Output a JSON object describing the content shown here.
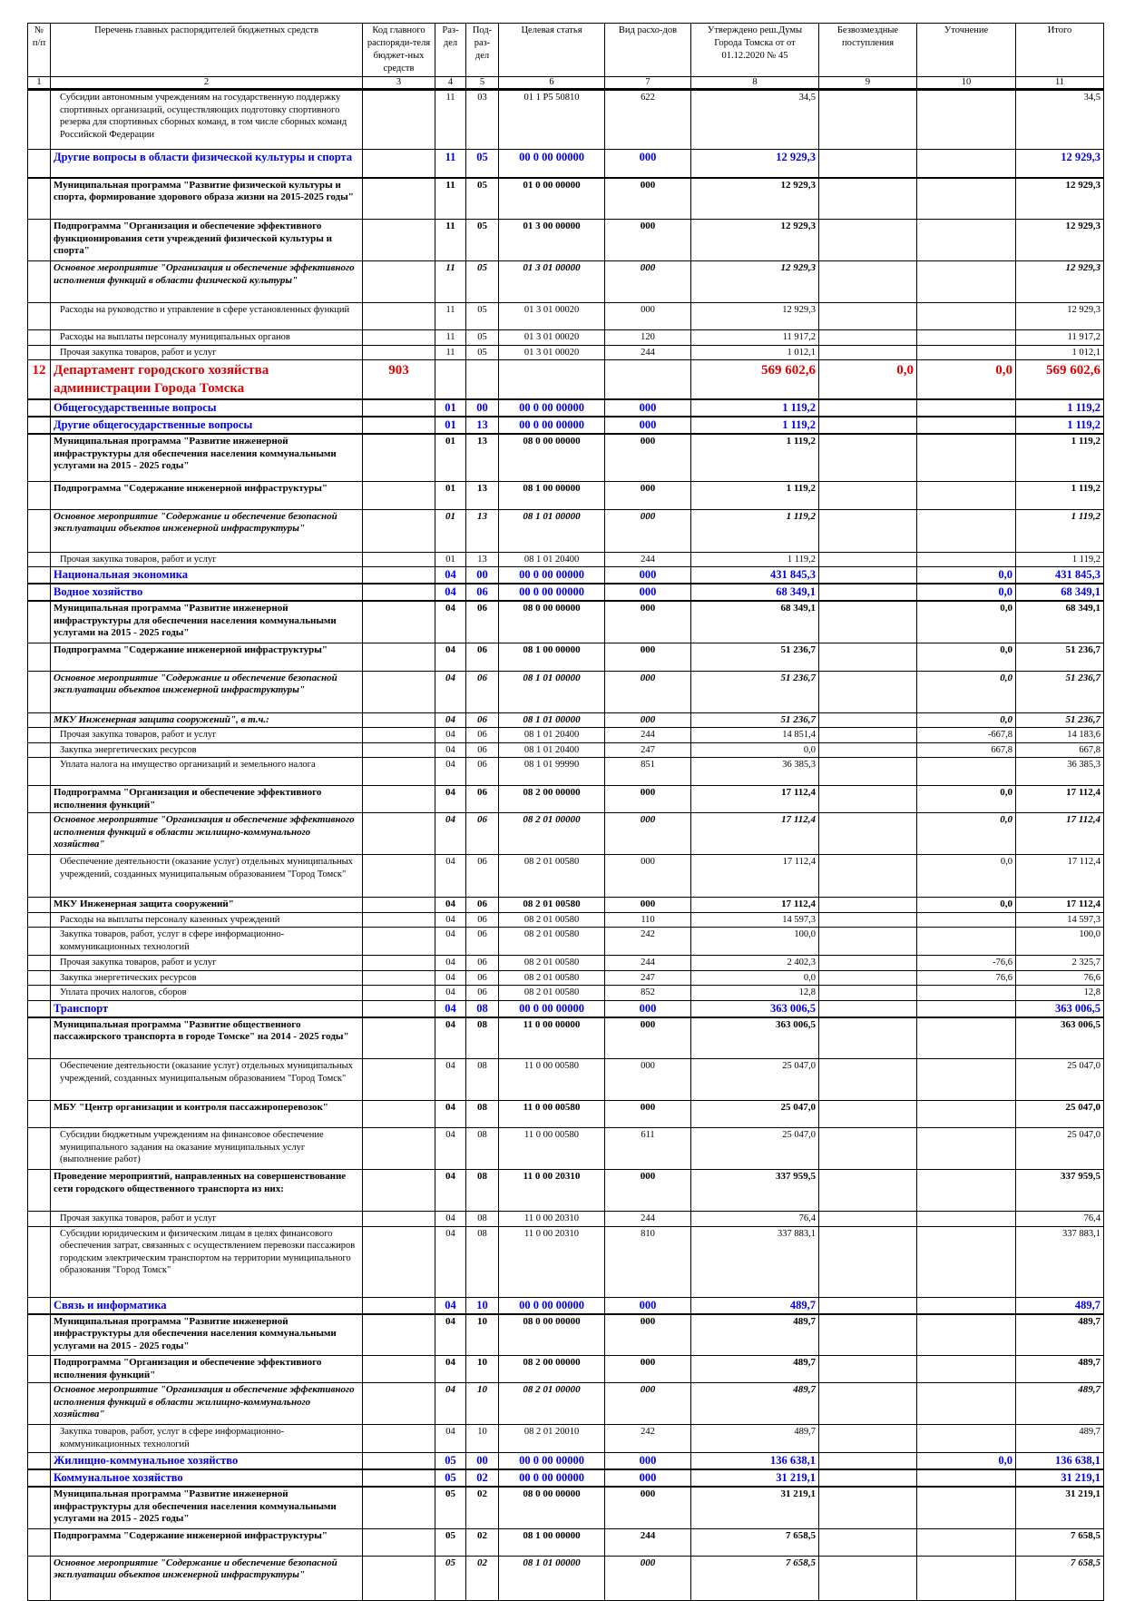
{
  "table": {
    "headers": [
      "№ п/п",
      "Перечень главных распорядителей бюджетных средств",
      "Код главного распоряди-теля бюджет-ных средств",
      "Раз-дел",
      "Под-раз-дел",
      "Целевая статья",
      "Вид расхо-дов",
      "Утверждено реш.Думы Города Томска от от 01.12.2020 № 45",
      "Безвозмездные поступления",
      "Уточнение",
      "Итого"
    ],
    "column_numbers": [
      "1",
      "2",
      "3",
      "4",
      "5",
      "6",
      "7",
      "8",
      "9",
      "10",
      "11"
    ],
    "rows": [
      {
        "style": "plain",
        "cells": [
          "",
          "Субсидии автономным учреждениям на  государственную поддержку спортивных организаций, осуществляющих подготовку спортивного резерва для спортивных сборных команд, в том числе сборных команд Российской Федерации",
          "",
          "11",
          "03",
          "01 1 P5 50810",
          "622",
          "34,5",
          "",
          "",
          "34,5"
        ]
      },
      {
        "style": "blue",
        "cells": [
          "",
          "Другие вопросы в области физической культуры и спорта",
          "",
          "11",
          "05",
          "00 0 00 00000",
          "000",
          "12 929,3",
          "",
          "",
          "12 929,3"
        ]
      },
      {
        "style": "bold",
        "cells": [
          "",
          "Муниципальная программа \"Развитие физической культуры и спорта, формирование здорового образа жизни на 2015-2025 годы\"",
          "",
          "11",
          "05",
          "01 0 00 00000",
          "000",
          "12 929,3",
          "",
          "",
          "12 929,3"
        ]
      },
      {
        "style": "bold",
        "cells": [
          "",
          "Подпрограмма \"Организация и обеспечение эффективного функционирования сети учреждений физической культуры и спорта\"",
          "",
          "11",
          "05",
          "01 3 00 00000",
          "000",
          "12 929,3",
          "",
          "",
          "12 929,3"
        ]
      },
      {
        "style": "bolditalic",
        "cells": [
          "",
          "Основное мероприятие \"Организация и обеспечение эффективного исполнения функций в области физической культуры\"",
          "",
          "11",
          "05",
          "01 3 01 00000",
          "000",
          "12 929,3",
          "",
          "",
          "12 929,3"
        ]
      },
      {
        "style": "plain",
        "cells": [
          "",
          "Расходы на руководство и управление в сфере установленных функций",
          "",
          "11",
          "05",
          "01 3 01 00020",
          "000",
          "12 929,3",
          "",
          "",
          "12 929,3"
        ]
      },
      {
        "style": "plain",
        "cells": [
          "",
          "Расходы на выплаты персоналу муниципальных органов",
          "",
          "11",
          "05",
          "01 3 01 00020",
          "120",
          "11 917,2",
          "",
          "",
          "11 917,2"
        ]
      },
      {
        "style": "plain",
        "cells": [
          "",
          "Прочая закупка товаров, работ и услуг",
          "",
          "11",
          "05",
          "01 3 01 00020",
          "244",
          "1 012,1",
          "",
          "",
          "1 012,1"
        ]
      },
      {
        "style": "red",
        "cells": [
          "12",
          "Департамент городского хозяйства администрации Города Томска",
          "903",
          "",
          "",
          "",
          "",
          "569 602,6",
          "0,0",
          "0,0",
          "569 602,6"
        ]
      },
      {
        "style": "blue",
        "cells": [
          "",
          "Общегосударственные вопросы",
          "",
          "01",
          "00",
          "00 0 00 00000",
          "000",
          "1 119,2",
          "",
          "",
          "1 119,2"
        ]
      },
      {
        "style": "blue",
        "cells": [
          "",
          "Другие общегосударственные вопросы",
          "",
          "01",
          "13",
          "00 0 00 00000",
          "000",
          "1 119,2",
          "",
          "",
          "1 119,2"
        ]
      },
      {
        "style": "bold",
        "cells": [
          "",
          "Муниципальная программа \"Развитие инженерной инфраструктуры для обеспечения населения коммунальными услугами на 2015 - 2025 годы\"",
          "",
          "01",
          "13",
          "08 0 00 00000",
          "000",
          "1 119,2",
          "",
          "",
          "1 119,2"
        ]
      },
      {
        "style": "bold",
        "cells": [
          "",
          "Подпрограмма \"Содержание инженерной инфраструктуры\"",
          "",
          "01",
          "13",
          "08 1 00 00000",
          "000",
          "1 119,2",
          "",
          "",
          "1 119,2"
        ]
      },
      {
        "style": "bolditalic",
        "cells": [
          "",
          "Основное мероприятие \"Содержание и обеспечение безопасной эксплуатации объектов инженерной инфраструктуры\"",
          "",
          "01",
          "13",
          "08 1 01 00000",
          "000",
          "1 119,2",
          "",
          "",
          "1 119,2"
        ]
      },
      {
        "style": "plain",
        "cells": [
          "",
          "Прочая закупка товаров, работ и услуг",
          "",
          "01",
          "13",
          "08 1 01 20400",
          "244",
          "1 119,2",
          "",
          "",
          "1 119,2"
        ]
      },
      {
        "style": "blue",
        "cells": [
          "",
          "Национальная экономика",
          "",
          "04",
          "00",
          "00 0 00 00000",
          "000",
          "431 845,3",
          "",
          "0,0",
          "431 845,3"
        ]
      },
      {
        "style": "blue",
        "cells": [
          "",
          "Водное хозяйство",
          "",
          "04",
          "06",
          "00 0 00 00000",
          "000",
          "68 349,1",
          "",
          "0,0",
          "68 349,1"
        ]
      },
      {
        "style": "bold",
        "cells": [
          "",
          "Муниципальная программа \"Развитие инженерной инфраструктуры для обеспечения населения коммунальными услугами на 2015 - 2025 годы\"",
          "",
          "04",
          "06",
          "08 0 00 00000",
          "000",
          "68 349,1",
          "",
          "0,0",
          "68 349,1"
        ]
      },
      {
        "style": "bold",
        "cells": [
          "",
          "Подпрограмма \"Содержание инженерной инфраструктуры\"",
          "",
          "04",
          "06",
          "08 1 00 00000",
          "000",
          "51 236,7",
          "",
          "0,0",
          "51 236,7"
        ]
      },
      {
        "style": "bolditalic",
        "cells": [
          "",
          "Основное мероприятие \"Содержание и обеспечение безопасной эксплуатации объектов инженерной инфраструктуры\"",
          "",
          "04",
          "06",
          "08 1 01 00000",
          "000",
          "51 236,7",
          "",
          "0,0",
          "51 236,7"
        ]
      },
      {
        "style": "bolditalic",
        "cells": [
          "",
          "МКУ Инженерная защита сооружений\", в т.ч.:",
          "",
          "04",
          "06",
          "08 1 01 00000",
          "000",
          "51 236,7",
          "",
          "0,0",
          "51 236,7"
        ]
      },
      {
        "style": "plain",
        "cells": [
          "",
          "Прочая закупка товаров, работ и услуг",
          "",
          "04",
          "06",
          "08 1 01 20400",
          "244",
          "14 851,4",
          "",
          "-667,8",
          "14 183,6"
        ]
      },
      {
        "style": "plain",
        "cells": [
          "",
          "Закупка энергетических ресурсов",
          "",
          "04",
          "06",
          "08 1 01 20400",
          "247",
          "0,0",
          "",
          "667,8",
          "667,8"
        ]
      },
      {
        "style": "plain",
        "cells": [
          "",
          "Уплата налога на имущество организаций и земельного налога",
          "",
          "04",
          "06",
          "08 1 01 99990",
          "851",
          "36 385,3",
          "",
          "",
          "36 385,3"
        ]
      },
      {
        "style": "bold",
        "cells": [
          "",
          "Подпрограмма \"Организация и обеспечение эффективного исполнения функций\"",
          "",
          "04",
          "06",
          "08 2 00 00000",
          "000",
          "17 112,4",
          "",
          "0,0",
          "17 112,4"
        ]
      },
      {
        "style": "bolditalic",
        "cells": [
          "",
          "Основное мероприятие \"Организация и обеспечение эффективного исполнения функций в области жилищно-коммунального хозяйства\"",
          "",
          "04",
          "06",
          "08 2 01 00000",
          "000",
          "17 112,4",
          "",
          "0,0",
          "17 112,4"
        ]
      },
      {
        "style": "plain",
        "cells": [
          "",
          "Обеспечение деятельности (оказание услуг) отдельных муниципальных учреждений, созданных муниципальным образованием \"Город Томск\"",
          "",
          "04",
          "06",
          "08 2 01 00580",
          "000",
          "17 112,4",
          "",
          "0,0",
          "17 112,4"
        ]
      },
      {
        "style": "bold",
        "cells": [
          "",
          "МКУ Инженерная защита сооружений\"",
          "",
          "04",
          "06",
          "08 2 01 00580",
          "000",
          "17 112,4",
          "",
          "0,0",
          "17 112,4"
        ]
      },
      {
        "style": "plain",
        "cells": [
          "",
          "Расходы на выплаты персоналу казенных учреждений",
          "",
          "04",
          "06",
          "08 2 01 00580",
          "110",
          "14 597,3",
          "",
          "",
          "14 597,3"
        ]
      },
      {
        "style": "plain",
        "cells": [
          "",
          "Закупка товаров, работ, услуг в сфере информационно-коммуникационных технологий",
          "",
          "04",
          "06",
          "08 2 01 00580",
          "242",
          "100,0",
          "",
          "",
          "100,0"
        ]
      },
      {
        "style": "plain",
        "cells": [
          "",
          "Прочая закупка товаров, работ и услуг",
          "",
          "04",
          "06",
          "08 2 01 00580",
          "244",
          "2 402,3",
          "",
          "-76,6",
          "2 325,7"
        ]
      },
      {
        "style": "plain",
        "cells": [
          "",
          "Закупка энергетических ресурсов",
          "",
          "04",
          "06",
          "08 2 01 00580",
          "247",
          "0,0",
          "",
          "76,6",
          "76,6"
        ]
      },
      {
        "style": "plain",
        "cells": [
          "",
          "Уплата прочих налогов, сборов",
          "",
          "04",
          "06",
          "08 2 01 00580",
          "852",
          "12,8",
          "",
          "",
          "12,8"
        ]
      },
      {
        "style": "blue",
        "cells": [
          "",
          "Транспорт",
          "",
          "04",
          "08",
          "00 0 00 00000",
          "000",
          "363 006,5",
          "",
          "",
          "363 006,5"
        ]
      },
      {
        "style": "bold",
        "cells": [
          "",
          "Муниципальная программа \"Развитие общественного пассажирского транспорта в городе Томске\" на 2014 - 2025 годы\"",
          "",
          "04",
          "08",
          "11 0 00 00000",
          "000",
          "363 006,5",
          "",
          "",
          "363 006,5"
        ]
      },
      {
        "style": "plain",
        "cells": [
          "",
          "Обеспечение деятельности (оказание услуг) отдельных муниципальных учреждений, созданных муниципальным образованием \"Город Томск\"",
          "",
          "04",
          "08",
          "11 0 00 00580",
          "000",
          "25 047,0",
          "",
          "",
          "25 047,0"
        ]
      },
      {
        "style": "bold",
        "cells": [
          "",
          "МБУ \"Центр организации и контроля пассажироперевозок\"",
          "",
          "04",
          "08",
          "11 0 00 00580",
          "000",
          "25 047,0",
          "",
          "",
          "25 047,0"
        ]
      },
      {
        "style": "plain",
        "cells": [
          "",
          "Субсидии бюджетным учреждениям на финансовое обеспечение муниципального задания на оказание муниципальных услуг (выполнение работ)",
          "",
          "04",
          "08",
          "11 0 00 00580",
          "611",
          "25 047,0",
          "",
          "",
          "25 047,0"
        ]
      },
      {
        "style": "bold",
        "cells": [
          "",
          "Проведение мероприятий, направленных на совершенствование сети городского общественного транспорта из них:",
          "",
          "04",
          "08",
          "11 0 00 20310",
          "000",
          "337 959,5",
          "",
          "",
          "337 959,5"
        ]
      },
      {
        "style": "plain",
        "cells": [
          "",
          "Прочая закупка товаров, работ и услуг",
          "",
          "04",
          "08",
          "11 0 00 20310",
          "244",
          "76,4",
          "",
          "",
          "76,4"
        ]
      },
      {
        "style": "plain",
        "cells": [
          "",
          "Субсидии юридическим и физическим лицам в целях финансового обеспечения затрат, связанных с осуществлением перевозки пассажиров городским электрическим транспортом на территории муниципального образования \"Город Томск\"",
          "",
          "04",
          "08",
          "11 0 00 20310",
          "810",
          "337 883,1",
          "",
          "",
          "337 883,1"
        ]
      },
      {
        "style": "blue",
        "cells": [
          "",
          "Связь и информатика",
          "",
          "04",
          "10",
          "00 0 00 00000",
          "000",
          "489,7",
          "",
          "",
          "489,7"
        ]
      },
      {
        "style": "bold",
        "cells": [
          "",
          "Муниципальная программа \"Развитие инженерной инфраструктуры для обеспечения населения коммунальными услугами на 2015 - 2025 годы\"",
          "",
          "04",
          "10",
          "08 0 00 00000",
          "000",
          "489,7",
          "",
          "",
          "489,7"
        ]
      },
      {
        "style": "bold",
        "cells": [
          "",
          "Подпрограмма \"Организация и обеспечение эффективного исполнения функций\"",
          "",
          "04",
          "10",
          "08 2 00 00000",
          "000",
          "489,7",
          "",
          "",
          "489,7"
        ]
      },
      {
        "style": "bolditalic",
        "cells": [
          "",
          "Основное мероприятие \"Организация и обеспечение эффективного исполнения функций в области жилищно-коммунального хозяйства\"",
          "",
          "04",
          "10",
          "08 2 01 00000",
          "000",
          "489,7",
          "",
          "",
          "489,7"
        ]
      },
      {
        "style": "plain",
        "cells": [
          "",
          "Закупка товаров, работ, услуг в сфере информационно-коммуникационных технологий",
          "",
          "04",
          "10",
          "08 2 01 20010",
          "242",
          "489,7",
          "",
          "",
          "489,7"
        ]
      },
      {
        "style": "blue",
        "cells": [
          "",
          "Жилищно-коммунальное хозяйство",
          "",
          "05",
          "00",
          "00 0 00 00000",
          "000",
          "136 638,1",
          "",
          "0,0",
          "136 638,1"
        ]
      },
      {
        "style": "blue",
        "cells": [
          "",
          "Коммунальное хозяйство",
          "",
          "05",
          "02",
          "00 0 00 00000",
          "000",
          "31 219,1",
          "",
          "",
          "31 219,1"
        ]
      },
      {
        "style": "bold",
        "cells": [
          "",
          "Муниципальная программа \"Развитие инженерной инфраструктуры для обеспечения населения коммунальными услугами на 2015 - 2025 годы\"",
          "",
          "05",
          "02",
          "08 0 00 00000",
          "000",
          "31 219,1",
          "",
          "",
          "31 219,1"
        ]
      },
      {
        "style": "bold",
        "cells": [
          "",
          "Подпрограмма \"Содержание инженерной инфраструктуры\"",
          "",
          "05",
          "02",
          "08 1 00 00000",
          "244",
          "7 658,5",
          "",
          "",
          "7 658,5"
        ]
      },
      {
        "style": "bolditalic",
        "cells": [
          "",
          "Основное мероприятие \"Содержание и обеспечение безопасной эксплуатации объектов инженерной инфраструктуры\"",
          "",
          "05",
          "02",
          "08 1 01 00000",
          "000",
          "7 658,5",
          "",
          "",
          "7 658,5"
        ]
      }
    ]
  }
}
